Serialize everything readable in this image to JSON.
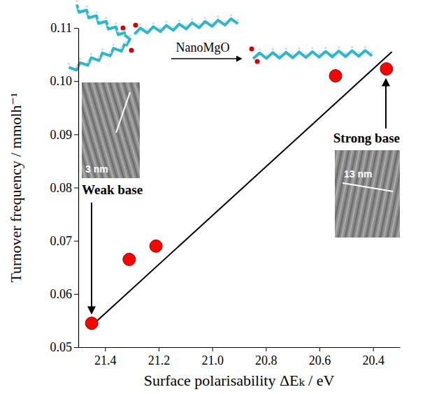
{
  "chart_data": {
    "type": "scatter",
    "x_label": "Surface polarisability ΔEₖ / eV",
    "y_label": "Turnover frequency / mmolh⁻¹",
    "xlim": [
      21.5,
      20.3
    ],
    "xticks": [
      21.4,
      21.2,
      {
        "value": 21,
        "label": "21.0"
      },
      20.8,
      20.6,
      20.4
    ],
    "ylim": [
      0.05,
      0.11
    ],
    "yticks": [
      0.05,
      0.06,
      0.07,
      0.08,
      0.09,
      {
        "value": 0.1,
        "label": "0.10"
      },
      0.11
    ],
    "grid": false,
    "series": [
      {
        "type": "scatter",
        "color": "#ff0000",
        "marker": "circle",
        "x": [
          21.45,
          21.31,
          21.21,
          20.54,
          20.35
        ],
        "values": [
          0.0545,
          0.0665,
          0.069,
          0.101,
          0.1023
        ]
      },
      {
        "type": "line",
        "color": "#000000",
        "line_style": "solid",
        "x": [
          21.44,
          20.33
        ],
        "values": [
          0.0545,
          0.1055
        ]
      }
    ],
    "annotations": [
      "NanoMgO",
      "Weak base",
      "Strong base",
      "3 nm",
      "13 nm"
    ]
  }
}
